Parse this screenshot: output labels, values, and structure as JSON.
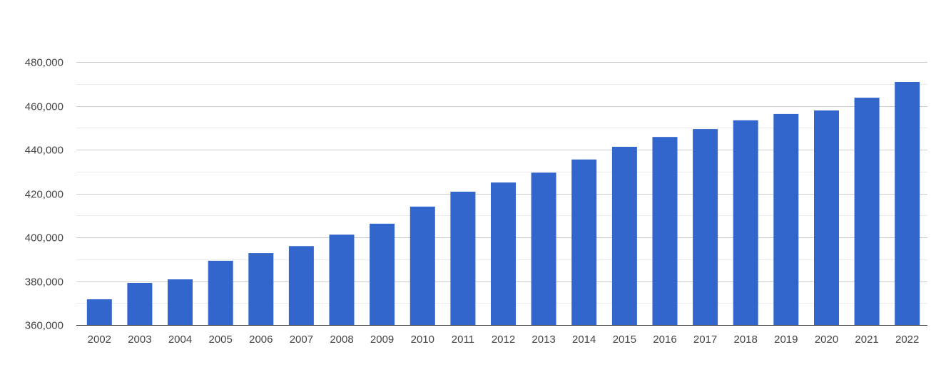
{
  "chart_data": {
    "type": "bar",
    "title": "",
    "xlabel": "",
    "ylabel": "",
    "categories": [
      "2002",
      "2003",
      "2004",
      "2005",
      "2006",
      "2007",
      "2008",
      "2009",
      "2010",
      "2011",
      "2012",
      "2013",
      "2014",
      "2015",
      "2016",
      "2017",
      "2018",
      "2019",
      "2020",
      "2021",
      "2022"
    ],
    "values": [
      371700,
      379200,
      380800,
      389300,
      392800,
      396000,
      401200,
      406200,
      414000,
      420800,
      425000,
      429500,
      435500,
      441300,
      445800,
      449400,
      453400,
      456300,
      457900,
      463700,
      470900
    ],
    "ylim": [
      360000,
      480000
    ],
    "yticks": [
      360000,
      380000,
      400000,
      420000,
      440000,
      460000,
      480000
    ],
    "ytick_labels": [
      "360,000",
      "380,000",
      "400,000",
      "420,000",
      "440,000",
      "460,000",
      "480,000"
    ],
    "grid": true,
    "minor_grid": true,
    "legend": "none",
    "colors": {
      "bar": "#3366cc",
      "grid_major": "#cccccc",
      "grid_minor": "#ebebeb",
      "baseline": "#333333",
      "text": "#444444"
    }
  }
}
